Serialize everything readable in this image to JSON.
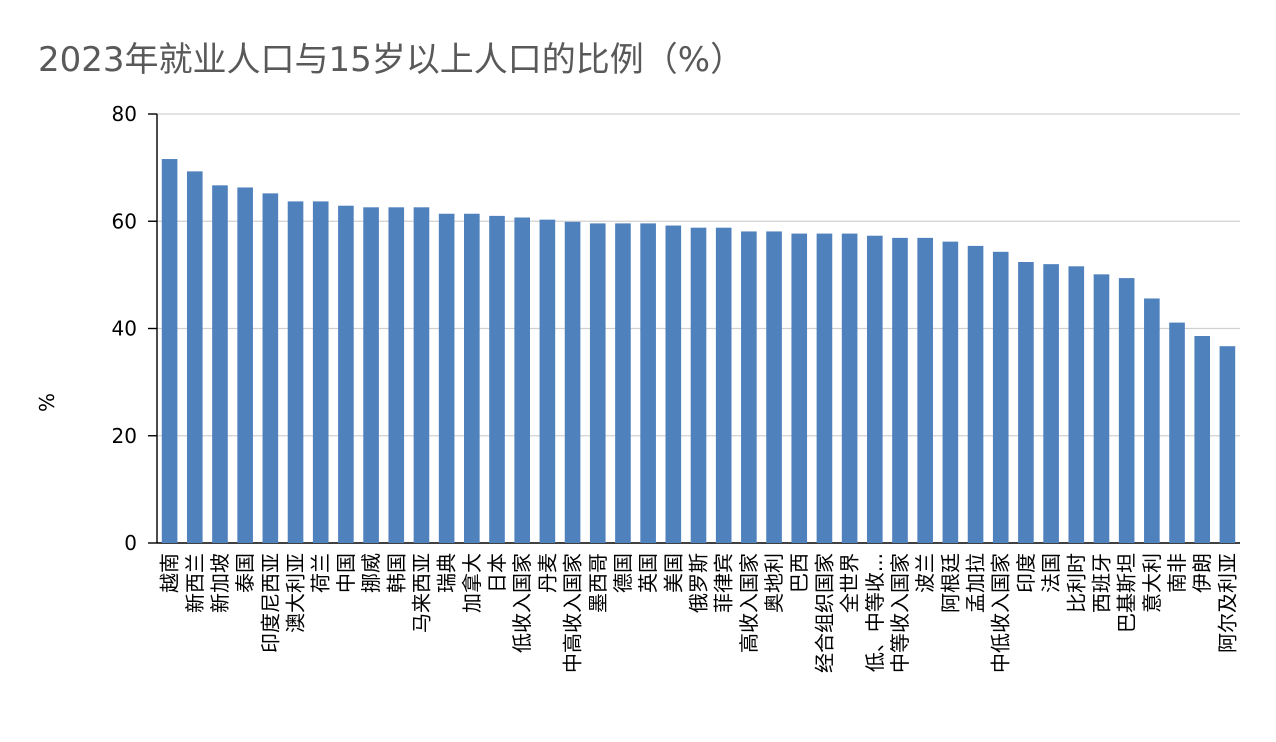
{
  "chart_data": {
    "type": "bar",
    "title": "2023年就业人口与15岁以上人口的比例（%）",
    "xlabel": "",
    "ylabel": "%",
    "ylim": [
      0,
      80
    ],
    "yticks": [
      0,
      20,
      40,
      60,
      80
    ],
    "grid": true,
    "legend": "none",
    "bar_color": "#4F81BD",
    "grid_color": "#D0D0D0",
    "categories": [
      "越南",
      "新西兰",
      "新加坡",
      "泰国",
      "印度尼西亚",
      "澳大利亚",
      "荷兰",
      "中国",
      "挪威",
      "韩国",
      "马来西亚",
      "瑞典",
      "加拿大",
      "日本",
      "低收入国家",
      "丹麦",
      "中高收入国家",
      "墨西哥",
      "德国",
      "英国",
      "美国",
      "俄罗斯",
      "菲律宾",
      "高收入国家",
      "奥地利",
      "巴西",
      "经合组织国家",
      "全世界",
      "低、中等收...",
      "中等收入国家",
      "波兰",
      "阿根廷",
      "孟加拉",
      "中低收入国家",
      "印度",
      "法国",
      "比利时",
      "西班牙",
      "巴基斯坦",
      "意大利",
      "南非",
      "伊朗",
      "阿尔及利亚"
    ],
    "values": [
      71.6,
      69.3,
      66.7,
      66.3,
      65.2,
      63.7,
      63.7,
      62.9,
      62.6,
      62.6,
      62.6,
      61.4,
      61.4,
      61.0,
      60.7,
      60.3,
      59.9,
      59.6,
      59.6,
      59.6,
      59.2,
      58.8,
      58.8,
      58.1,
      58.1,
      57.7,
      57.7,
      57.7,
      57.3,
      56.9,
      56.9,
      56.2,
      55.4,
      54.3,
      52.4,
      52.0,
      51.6,
      50.1,
      49.4,
      45.6,
      41.1,
      38.6,
      36.7
    ]
  }
}
